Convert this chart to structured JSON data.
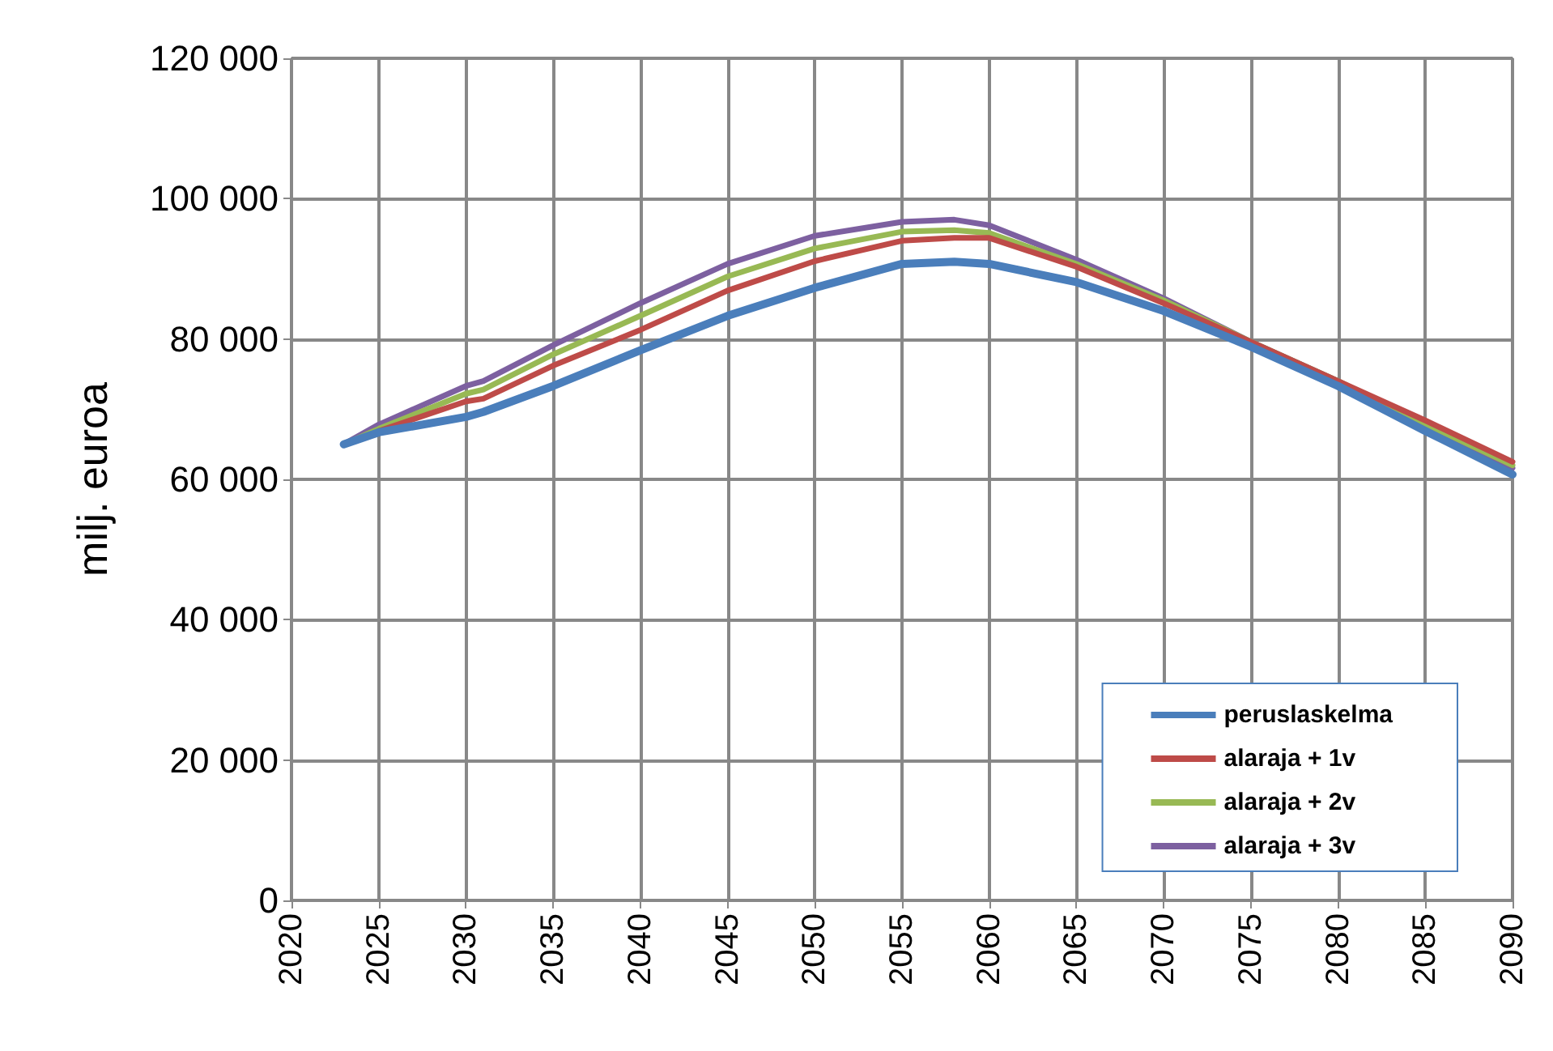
{
  "chart_data": {
    "type": "line",
    "ylabel": "milj. euroa",
    "x": [
      2023,
      2025,
      2030,
      2031,
      2035,
      2040,
      2045,
      2050,
      2055,
      2058,
      2060,
      2065,
      2070,
      2075,
      2080,
      2085,
      2090
    ],
    "series": [
      {
        "name": "peruslaskelma",
        "color": "#4a7ebb",
        "values": [
          65000,
          66700,
          68900,
          69600,
          73300,
          78400,
          83300,
          87300,
          90700,
          91000,
          90700,
          88100,
          84000,
          78900,
          73300,
          66900,
          60700
        ]
      },
      {
        "name": "alaraja + 1v",
        "color": "#be4b48",
        "values": [
          null,
          66900,
          71100,
          71500,
          76200,
          81300,
          86900,
          91100,
          94000,
          94400,
          94400,
          90300,
          85100,
          79600,
          74000,
          68400,
          62500
        ]
      },
      {
        "name": "alaraja + 2v",
        "color": "#98b954",
        "values": [
          65000,
          67200,
          72200,
          72800,
          77800,
          83300,
          88900,
          92900,
          95300,
          95500,
          95100,
          90700,
          85500,
          79600,
          74000,
          67900,
          62000
        ]
      },
      {
        "name": "alaraja + 3v",
        "color": "#7d60a0",
        "values": [
          65000,
          67800,
          73300,
          74000,
          79100,
          85100,
          90700,
          94700,
          96700,
          97000,
          96200,
          91300,
          85800,
          79600,
          74000,
          67400,
          61600
        ]
      }
    ],
    "xlim": [
      2020,
      2090
    ],
    "xticks": [
      2020,
      2025,
      2030,
      2035,
      2040,
      2045,
      2050,
      2055,
      2060,
      2065,
      2070,
      2075,
      2080,
      2085,
      2090
    ],
    "ylim": [
      0,
      120000
    ],
    "yticks": [
      0,
      {
        "value": 20000,
        "label": "20 000"
      },
      {
        "value": 40000,
        "label": "40 000"
      },
      {
        "value": 60000,
        "label": "60 000"
      },
      {
        "value": 80000,
        "label": "80 000"
      },
      {
        "value": 100000,
        "label": "100 000"
      },
      {
        "value": 120000,
        "label": "120 000"
      }
    ],
    "grid": true,
    "legend": "bottom right",
    "marker": "none",
    "line_style": "solid"
  }
}
